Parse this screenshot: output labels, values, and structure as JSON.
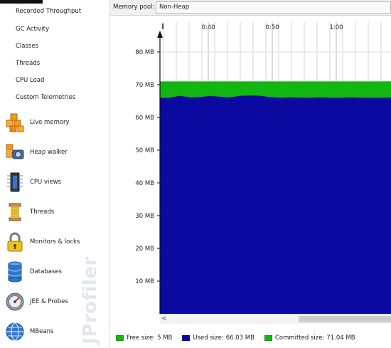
{
  "sidebar": {
    "sub_items": [
      {
        "label": "Recorded Throughput"
      },
      {
        "label": "GC Activity"
      },
      {
        "label": "Classes"
      },
      {
        "label": "Threads"
      },
      {
        "label": "CPU Load"
      },
      {
        "label": "Custom Telemetries"
      }
    ],
    "nav_items": [
      {
        "label": "Live memory",
        "icon": "live-memory-icon"
      },
      {
        "label": "Heap walker",
        "icon": "heap-walker-icon"
      },
      {
        "label": "CPU views",
        "icon": "cpu-views-icon"
      },
      {
        "label": "Threads",
        "icon": "threads-icon"
      },
      {
        "label": "Monitors & locks",
        "icon": "monitors-locks-icon"
      },
      {
        "label": "Databases",
        "icon": "databases-icon"
      },
      {
        "label": "JEE & Probes",
        "icon": "jee-probes-icon"
      },
      {
        "label": "MBeans",
        "icon": "mbeans-icon"
      }
    ],
    "watermark": "JProfiler"
  },
  "toolbar": {
    "pool_label": "Memory pool:",
    "pool_value": "Non-Heap"
  },
  "chart_data": {
    "type": "area",
    "title": "",
    "xlabel": "",
    "ylabel": "",
    "x_ticks": [
      "0:40",
      "0:50",
      "1:00"
    ],
    "y_ticks": [
      "10 MB",
      "20 MB",
      "30 MB",
      "40 MB",
      "50 MB",
      "60 MB",
      "70 MB",
      "80 MB"
    ],
    "ylim": [
      0,
      85
    ],
    "unit": "MB",
    "grid": true,
    "series": [
      {
        "name": "Used size",
        "color": "#0a0aa0",
        "values": [
          66.0,
          66.0,
          66.6,
          66.1,
          66.2,
          66.6,
          66.3,
          66.1,
          66.6,
          66.7,
          66.6,
          66.2,
          66.0,
          66.1,
          66.0,
          66.0,
          66.1,
          66.0,
          66.0,
          66.1,
          66.0,
          66.0,
          66.0,
          66.03
        ]
      },
      {
        "name": "Committed size",
        "color": "#13b513",
        "values": [
          71.0,
          71.0,
          71.0,
          71.0,
          71.0,
          71.0,
          71.0,
          71.0,
          71.0,
          71.0,
          71.0,
          71.0,
          71.0,
          71.0,
          71.0,
          71.0,
          71.0,
          71.0,
          71.0,
          71.0,
          71.0,
          71.0,
          71.0,
          71.04
        ]
      }
    ]
  },
  "legend": [
    {
      "label": "Free size",
      "value": "5 MB",
      "color": "#13b513"
    },
    {
      "label": "Used size",
      "value": "66.03 MB",
      "color": "#0a0aa0"
    },
    {
      "label": "Committed size",
      "value": "71.04 MB",
      "color": "#13b513"
    }
  ],
  "scrollbar": {
    "left_arrow": "<"
  }
}
